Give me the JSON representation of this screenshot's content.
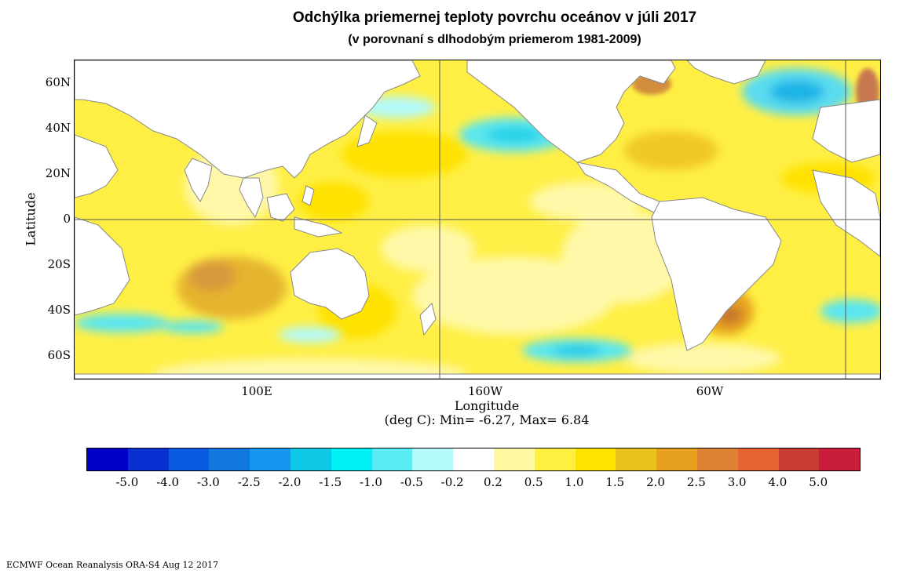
{
  "title": "Odchýlka priemernej teploty povrchu oceánov v júli 2017",
  "subtitle": "(v porovnaní s dlhodobým priemerom 1981-2009)",
  "map": {
    "y_axis_label": "Latitude",
    "x_axis_label": "Longitude",
    "y_ticks": [
      "60N",
      "40N",
      "20N",
      "0",
      "20S",
      "40S",
      "60S"
    ],
    "x_ticks": [
      "100E",
      "160W",
      "60W"
    ],
    "stats_note": "(deg C): Min= -6.27, Max= 6.84",
    "land_color": "#ffffff",
    "ocean_base_color": "#ffee33"
  },
  "legend": {
    "colors": [
      "#0000c8",
      "#0a2fd0",
      "#0a5ae0",
      "#1278e0",
      "#1596f0",
      "#0ec8e6",
      "#00f0f5",
      "#5aecf5",
      "#b4fafa",
      "#ffffff",
      "#fff8a0",
      "#fff040",
      "#ffe400",
      "#e8c31e",
      "#e6a01e",
      "#dc8232",
      "#e66432",
      "#c83c32",
      "#c81e3c"
    ],
    "labels": [
      "-5.0",
      "-4.0",
      "-3.0",
      "-2.5",
      "-2.0",
      "-1.5",
      "-1.0",
      "-0.5",
      "-0.2",
      "0.2",
      "0.5",
      "1.0",
      "1.5",
      "2.0",
      "2.5",
      "3.0",
      "4.0",
      "5.0"
    ]
  },
  "footer": "ECMWF Ocean Reanalysis ORA-S4 Aug 12 2017"
}
